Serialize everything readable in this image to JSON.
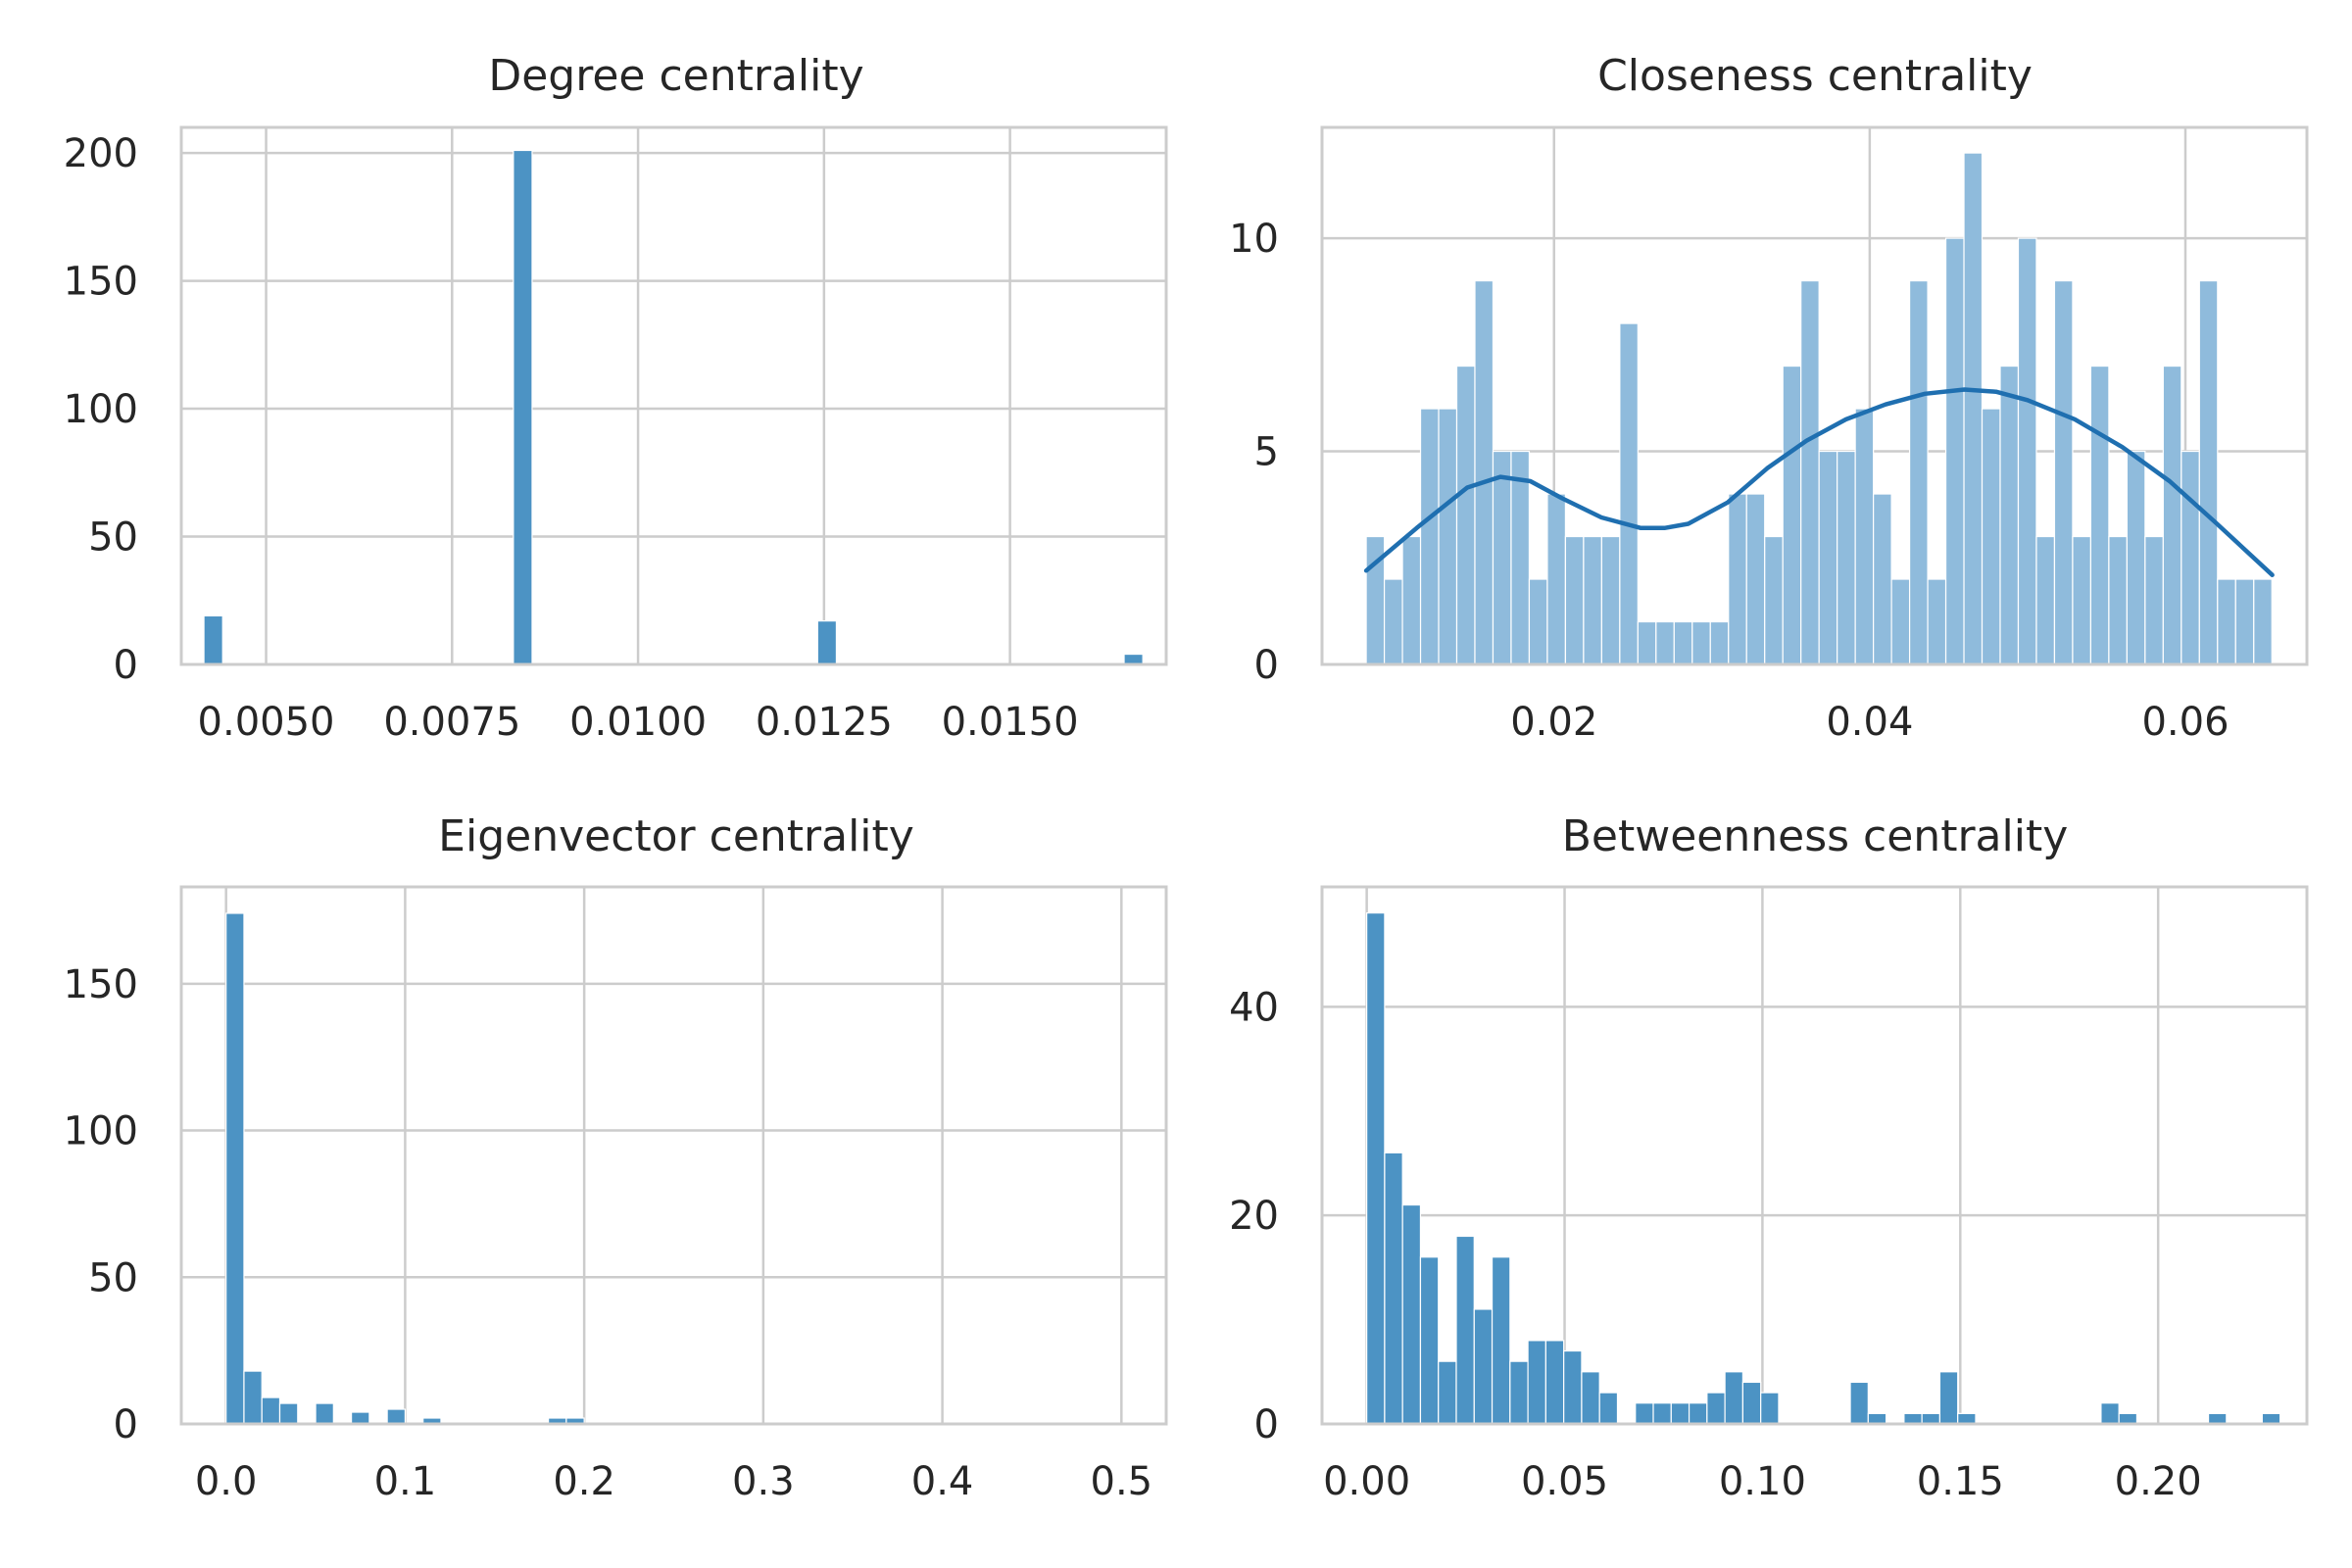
{
  "colors": {
    "bar": "#4c93c4",
    "bar_light": "#8fbbdc",
    "kde_line": "#1f6fb0",
    "grid": "#cccccc"
  },
  "chart_data": [
    {
      "type": "bar",
      "title": "Degree centrality",
      "xlabel": "",
      "ylabel": "",
      "xlim": [
        0.00386,
        0.0171
      ],
      "ylim": [
        0,
        210
      ],
      "xticks": [
        0.005,
        0.0075,
        0.01,
        0.0125,
        0.015
      ],
      "xtick_labels": [
        "0.0050",
        "0.0075",
        "0.0100",
        "0.0125",
        "0.0150"
      ],
      "yticks": [
        0,
        50,
        100,
        150,
        200
      ],
      "ytick_labels": [
        "0",
        "50",
        "100",
        "150",
        "200"
      ],
      "grid": true,
      "bin_width": 0.000252,
      "x": [
        0.00429,
        0.00845,
        0.01254,
        0.01666
      ],
      "values": [
        19,
        201,
        17,
        4
      ]
    },
    {
      "type": "bar",
      "title": "Closeness centrality",
      "xlabel": "",
      "ylabel": "",
      "xlim": [
        0.0053,
        0.0677
      ],
      "ylim": [
        0,
        12.6
      ],
      "xticks": [
        0.02,
        0.04,
        0.06
      ],
      "xtick_labels": [
        "0.02",
        "0.04",
        "0.06"
      ],
      "yticks": [
        0,
        5,
        10
      ],
      "ytick_labels": [
        "0",
        "5",
        "10"
      ],
      "grid": true,
      "bin_start": 0.0081,
      "bin_width": 0.0011476,
      "values": [
        3,
        2,
        3,
        6,
        6,
        7,
        9,
        5,
        5,
        2,
        4,
        3,
        3,
        3,
        8,
        1,
        1,
        1,
        1,
        1,
        4,
        4,
        3,
        7,
        9,
        5,
        5,
        6,
        4,
        2,
        9,
        2,
        10,
        12,
        6,
        7,
        10,
        3,
        9,
        3,
        7,
        3,
        5,
        3,
        7,
        5,
        9,
        2,
        2,
        2
      ],
      "kde": {
        "x": [
          0.0081,
          0.0113,
          0.0145,
          0.0166,
          0.0185,
          0.0205,
          0.023,
          0.0255,
          0.027,
          0.0285,
          0.031,
          0.0335,
          0.036,
          0.0385,
          0.041,
          0.0435,
          0.046,
          0.048,
          0.05,
          0.053,
          0.056,
          0.059,
          0.062,
          0.0655
        ],
        "y": [
          2.2,
          3.2,
          4.15,
          4.4,
          4.3,
          3.9,
          3.45,
          3.2,
          3.2,
          3.3,
          3.8,
          4.6,
          5.25,
          5.75,
          6.1,
          6.35,
          6.45,
          6.4,
          6.2,
          5.75,
          5.1,
          4.3,
          3.3,
          2.1
        ]
      }
    },
    {
      "type": "bar",
      "title": "Eigenvector centrality",
      "xlabel": "",
      "ylabel": "",
      "xlim": [
        -0.025,
        0.525
      ],
      "ylim": [
        0,
        183
      ],
      "xticks": [
        0.0,
        0.1,
        0.2,
        0.3,
        0.4,
        0.5
      ],
      "xtick_labels": [
        "0.0",
        "0.1",
        "0.2",
        "0.3",
        "0.4",
        "0.5"
      ],
      "yticks": [
        0,
        50,
        100,
        150
      ],
      "ytick_labels": [
        "0",
        "50",
        "100",
        "150"
      ],
      "grid": true,
      "bin_start": 0.0,
      "bin_width": 0.01,
      "values": [
        174,
        18,
        9,
        7,
        0,
        7,
        0,
        4,
        0,
        5,
        0,
        2,
        0,
        0,
        0,
        0,
        0,
        0,
        2,
        2
      ]
    },
    {
      "type": "bar",
      "title": "Betweenness centrality",
      "xlabel": "",
      "ylabel": "",
      "xlim": [
        -0.0113,
        0.2376
      ],
      "ylim": [
        0,
        51.5
      ],
      "xticks": [
        0.0,
        0.05,
        0.1,
        0.15,
        0.2
      ],
      "xtick_labels": [
        "0.00",
        "0.05",
        "0.10",
        "0.15",
        "0.20"
      ],
      "yticks": [
        0,
        20,
        40
      ],
      "ytick_labels": [
        "0",
        "20",
        "40"
      ],
      "grid": true,
      "bin_start": 0.0,
      "bin_width": 0.004526,
      "values": [
        49,
        26,
        21,
        16,
        6,
        18,
        11,
        16,
        6,
        8,
        8,
        7,
        5,
        3,
        0,
        2,
        2,
        2,
        2,
        3,
        5,
        4,
        3,
        0,
        0,
        0,
        0,
        4,
        1,
        0,
        1,
        1,
        5,
        1,
        0,
        0,
        0,
        0,
        0,
        0,
        0,
        2,
        1,
        0,
        0,
        0,
        0,
        1,
        0,
        0,
        1
      ]
    }
  ]
}
